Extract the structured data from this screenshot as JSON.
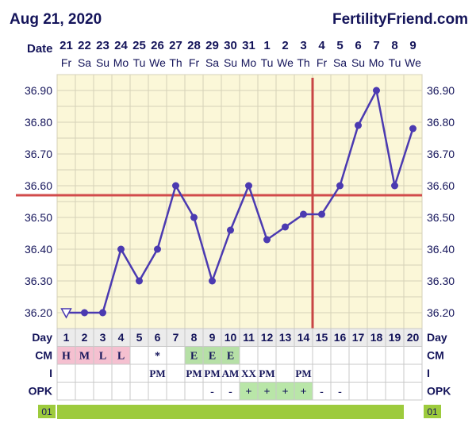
{
  "header": {
    "date": "Aug 21, 2020",
    "brand": "FertilityFriend.com"
  },
  "colors": {
    "chart_bg": "#fbf7d8",
    "grid": "#d6d2b8",
    "line": "#4b3ab1",
    "coverline": "#d24b4b",
    "ovulation_line": "#c84545",
    "text": "#14145a",
    "cm_pink": "#f5c0d0",
    "cm_green": "#b6e0a6",
    "opk_green": "#b9e6a8",
    "bar_green": "#9dcb3d",
    "row_label_bg": "#e7e7e7"
  },
  "row_labels": {
    "date": "Date",
    "day": "Day",
    "cm": "CM",
    "intercourse": "I",
    "opk": "OPK"
  },
  "chart_data": {
    "type": "line",
    "title": "",
    "xlabel": "",
    "ylabel": "",
    "ylim": [
      36.15,
      36.95
    ],
    "yticks": [
      "36.20",
      "36.30",
      "36.40",
      "36.50",
      "36.60",
      "36.70",
      "36.80",
      "36.90"
    ],
    "date_numbers": [
      "21",
      "22",
      "23",
      "24",
      "25",
      "26",
      "27",
      "28",
      "29",
      "30",
      "31",
      "1",
      "2",
      "3",
      "4",
      "5",
      "6",
      "7",
      "8",
      "9"
    ],
    "weekdays": [
      "Fr",
      "Sa",
      "Su",
      "Mo",
      "Tu",
      "We",
      "Th",
      "Fr",
      "Sa",
      "Su",
      "Mo",
      "Tu",
      "We",
      "Th",
      "Fr",
      "Sa",
      "Su",
      "Mo",
      "Tu",
      "We"
    ],
    "cycle_days": [
      "1",
      "2",
      "3",
      "4",
      "5",
      "6",
      "7",
      "8",
      "9",
      "10",
      "11",
      "12",
      "13",
      "14",
      "15",
      "16",
      "17",
      "18",
      "19",
      "20"
    ],
    "series": [
      {
        "values": [
          36.2,
          36.2,
          36.2,
          36.4,
          36.3,
          36.4,
          36.6,
          36.5,
          36.3,
          36.46,
          36.6,
          36.43,
          36.47,
          36.51,
          36.51,
          36.6,
          36.79,
          36.9,
          36.6,
          36.78
        ],
        "first_point_marker": "open-triangle"
      }
    ],
    "coverline": 36.57,
    "ovulation_day": 15,
    "cm": [
      "H",
      "M",
      "L",
      "L",
      "",
      "*",
      "",
      "E",
      "E",
      "E",
      "",
      "",
      "",
      "",
      "",
      "",
      "",
      "",
      "",
      ""
    ],
    "cm_colors": [
      "pink",
      "pink",
      "pink",
      "pink",
      "",
      "",
      "",
      "green",
      "green",
      "green",
      "",
      "",
      "",
      "",
      "",
      "",
      "",
      "",
      "",
      ""
    ],
    "intercourse": [
      "",
      "",
      "",
      "",
      "",
      "PM",
      "",
      "PM",
      "PM",
      "AM",
      "XX",
      "PM",
      "",
      "PM",
      "",
      "",
      "",
      "",
      "",
      ""
    ],
    "opk": [
      "",
      "",
      "",
      "",
      "",
      "",
      "",
      "",
      "-",
      "-",
      "+",
      "+",
      "+",
      "+",
      "-",
      "-",
      "",
      "",
      "",
      ""
    ],
    "bottom_row_label": "01"
  }
}
